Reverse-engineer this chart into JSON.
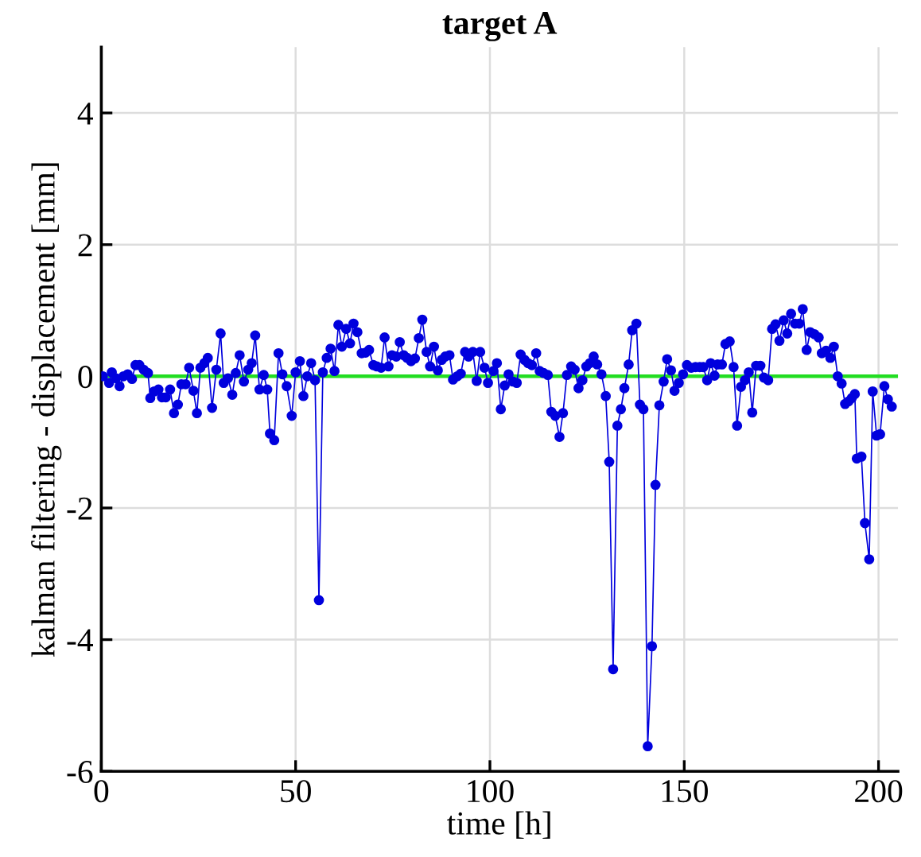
{
  "chart_data": {
    "type": "line",
    "title": "target A",
    "xlabel": "time [h]",
    "ylabel": "kalman filtering - displacement [mm]",
    "xlim": [
      0,
      205
    ],
    "ylim": [
      -6,
      5
    ],
    "xticks": [
      0,
      50,
      100,
      150,
      200
    ],
    "yticks": [
      -6,
      -4,
      -2,
      0,
      2,
      4
    ],
    "grid": true,
    "marker": "circle",
    "line_style": "solid",
    "ref_lines": [
      {
        "axis": "y",
        "value": 0,
        "color": "#22dd22"
      }
    ],
    "series": [
      {
        "color": "#0000dd",
        "x": [
          0.4,
          2,
          2.7,
          3.8,
          4.7,
          5.7,
          6.8,
          7.9,
          8.8,
          9.8,
          10.9,
          12,
          12.6,
          13.6,
          14.7,
          15.6,
          16.6,
          17.7,
          18.7,
          19.7,
          20.6,
          21.7,
          22.6,
          23.7,
          24.6,
          25.5,
          26.5,
          27.4,
          28.5,
          29.6,
          30.7,
          31.5,
          32.6,
          33.7,
          34.6,
          35.6,
          36.7,
          37.8,
          38.7,
          39.6,
          40.7,
          41.8,
          42.7,
          43.4,
          44.5,
          45.6,
          46.6,
          47.7,
          49,
          50,
          51.1,
          52,
          53,
          54,
          55,
          56,
          57,
          58,
          59,
          60,
          61,
          61.9,
          63,
          64,
          64.9,
          65.9,
          67,
          68,
          68.9,
          70,
          70.9,
          72,
          72.9,
          73.9,
          74.8,
          75.9,
          76.8,
          77.8,
          78.7,
          79.7,
          80.7,
          81.7,
          82.6,
          83.7,
          84.6,
          85.6,
          86.6,
          87.6,
          88.5,
          89.6,
          90.5,
          91.6,
          92.5,
          93.6,
          94.5,
          95.6,
          96.6,
          97.5,
          98.6,
          99.5,
          100.9,
          101.8,
          102.8,
          103.8,
          104.8,
          105.9,
          106.9,
          107.9,
          108.9,
          109.8,
          110.8,
          111.9,
          112.8,
          113.8,
          114.9,
          115.8,
          116.8,
          117.9,
          118.8,
          119.8,
          120.9,
          121.8,
          122.8,
          123.8,
          124.8,
          125.7,
          126.7,
          127.6,
          128.7,
          129.8,
          130.7,
          131.7,
          132.8,
          133.7,
          134.6,
          135.7,
          136.6,
          137.7,
          138.6,
          139.5,
          140.6,
          141.7,
          142.6,
          143.6,
          144.7,
          145.6,
          146.6,
          147.5,
          148.6,
          149.7,
          150.7,
          151.8,
          152.9,
          154,
          154.9,
          155.9,
          156.8,
          157.8,
          158.6,
          159.7,
          160.6,
          161.7,
          162.7,
          163.6,
          164.6,
          165.6,
          166.6,
          167.5,
          168.5,
          169.6,
          170.5,
          171.6,
          172.6,
          173.5,
          174.5,
          175.6,
          176.5,
          177.5,
          178.5,
          179.6,
          180.5,
          181.5,
          182.4,
          183.5,
          184.6,
          185.4,
          186.5,
          187.6,
          188.5,
          189.5,
          190.5,
          191.4,
          192.3,
          193.1,
          193.9,
          194.4,
          195.6,
          196.5,
          197.6,
          198.5,
          199.5,
          200.4,
          201.5,
          202.4,
          203.4
        ],
        "values": [
          0,
          -0.1,
          0.06,
          -0.03,
          -0.15,
          0,
          0.03,
          -0.04,
          0.17,
          0.17,
          0.1,
          0.05,
          -0.33,
          -0.23,
          -0.2,
          -0.32,
          -0.32,
          -0.2,
          -0.56,
          -0.43,
          -0.12,
          -0.12,
          0.13,
          -0.22,
          -0.56,
          0.13,
          0.2,
          0.28,
          -0.48,
          0.1,
          0.65,
          -0.1,
          -0.03,
          -0.28,
          0.05,
          0.32,
          -0.08,
          0.1,
          0.2,
          0.62,
          -0.2,
          0.02,
          -0.2,
          -0.87,
          -0.97,
          0.35,
          0.03,
          -0.15,
          -0.6,
          0.06,
          0.23,
          -0.3,
          0,
          0.2,
          -0.06,
          -3.4,
          0.06,
          0.28,
          0.42,
          0.08,
          0.78,
          0.45,
          0.72,
          0.5,
          0.8,
          0.67,
          0.35,
          0.36,
          0.4,
          0.17,
          0.15,
          0.13,
          0.59,
          0.15,
          0.32,
          0.3,
          0.52,
          0.32,
          0.28,
          0.23,
          0.27,
          0.58,
          0.86,
          0.37,
          0.15,
          0.45,
          0.09,
          0.25,
          0.3,
          0.32,
          -0.05,
          0,
          0.04,
          0.37,
          0.3,
          0.37,
          -0.07,
          0.37,
          0.13,
          -0.1,
          0.08,
          0.2,
          -0.5,
          -0.14,
          0.03,
          -0.08,
          -0.1,
          0.33,
          0.25,
          0.2,
          0.17,
          0.35,
          0.08,
          0.05,
          0.02,
          -0.54,
          -0.6,
          -0.92,
          -0.56,
          0.02,
          0.15,
          0.1,
          -0.18,
          -0.06,
          0.15,
          0.2,
          0.3,
          0.18,
          0.03,
          -0.3,
          -1.3,
          -4.45,
          -0.75,
          -0.5,
          -0.18,
          0.18,
          0.7,
          0.8,
          -0.43,
          -0.5,
          -5.62,
          -4.1,
          -1.65,
          -0.44,
          -0.08,
          0.26,
          0.09,
          -0.22,
          -0.1,
          0.03,
          0.17,
          0.13,
          0.14,
          0.14,
          0.14,
          -0.06,
          0.2,
          0.01,
          0.18,
          0.18,
          0.49,
          0.53,
          0.14,
          -0.75,
          -0.16,
          -0.06,
          0.06,
          -0.55,
          0.16,
          0.16,
          -0.02,
          -0.06,
          0.72,
          0.79,
          0.54,
          0.85,
          0.65,
          0.95,
          0.8,
          0.8,
          1.02,
          0.4,
          0.67,
          0.64,
          0.59,
          0.35,
          0.39,
          0.28,
          0.45,
          0,
          -0.11,
          -0.42,
          -0.38,
          -0.33,
          -0.27,
          -1.25,
          -1.22,
          -2.23,
          -2.78,
          -0.23,
          -0.9,
          -0.88,
          -0.15,
          -0.35,
          -0.46
        ]
      }
    ]
  }
}
